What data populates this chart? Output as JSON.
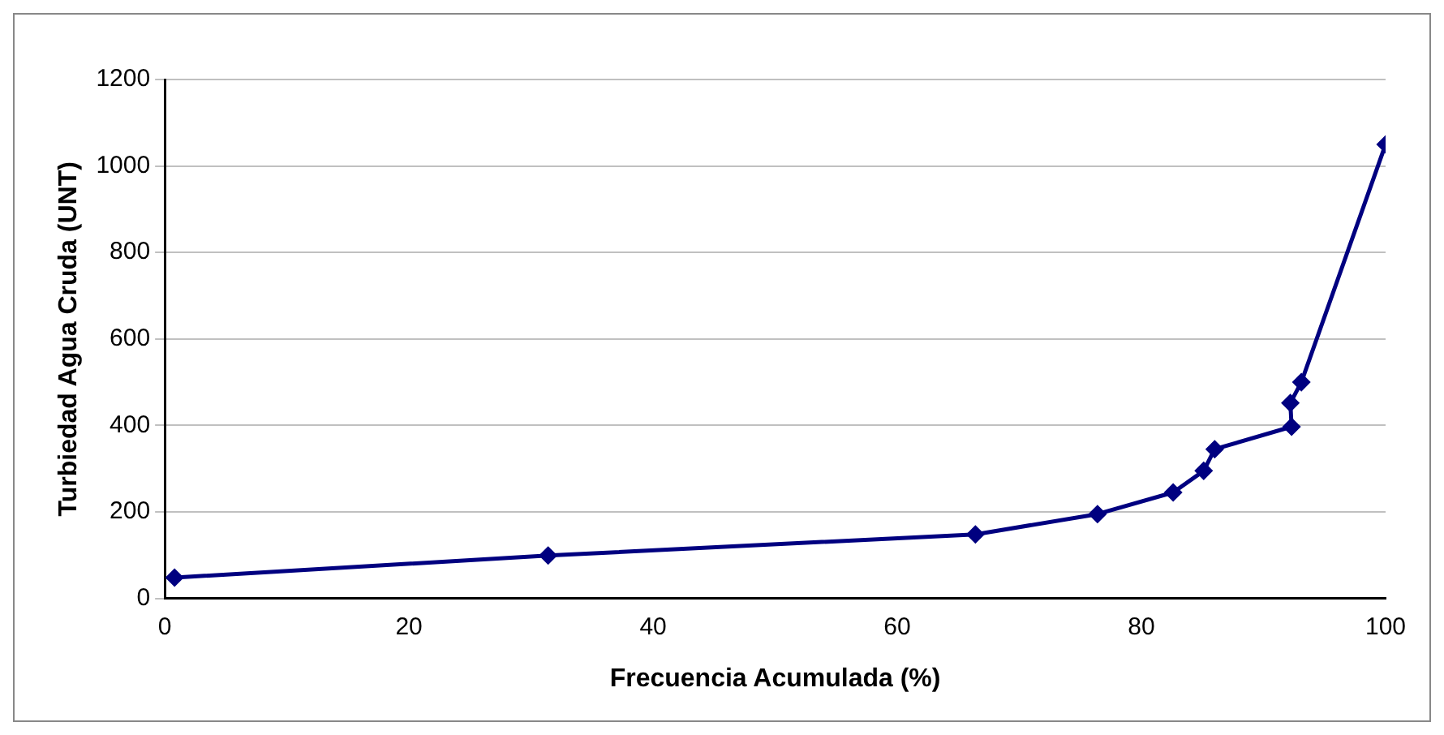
{
  "chart_data": {
    "type": "line",
    "xlabel": "Frecuencia Acumulada (%)",
    "ylabel": "Turbiedad Agua Cruda (UNT)",
    "x": [
      0.8,
      31.4,
      66.4,
      76.4,
      82.6,
      85.1,
      86.0,
      92.3,
      92.2,
      93.1,
      100
    ],
    "series": [
      {
        "color": "#000080",
        "values": [
          48,
          99,
          148,
          195,
          245,
          295,
          345,
          397,
          452,
          500,
          1050
        ]
      }
    ],
    "xlim": [
      0,
      100
    ],
    "xticks": [
      0,
      20,
      40,
      60,
      80,
      100
    ],
    "ylim": [
      0,
      1200
    ],
    "yticks": [
      0,
      200,
      400,
      600,
      800,
      1000,
      1200
    ],
    "grid": "y",
    "legend": false,
    "marker": "diamond",
    "line_style": "solid"
  }
}
